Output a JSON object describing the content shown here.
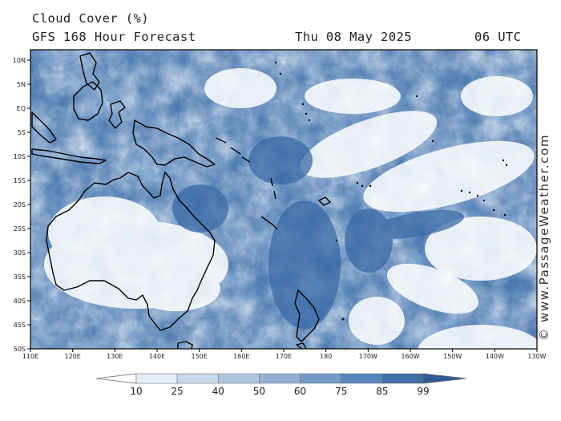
{
  "header": {
    "title": "Cloud Cover (%)",
    "subtitle": "GFS 168 Hour Forecast",
    "date": "Thu 08 May 2025",
    "time": "06 UTC"
  },
  "credit": "© www.PassageWeather.com",
  "map": {
    "lon_range": [
      110,
      230
    ],
    "lat_range": [
      10,
      -50
    ],
    "lat_labels": [
      "10N",
      "5N",
      "EQ",
      "5S",
      "10S",
      "15S",
      "20S",
      "25S",
      "30S",
      "35S",
      "40S",
      "45S",
      "50S"
    ],
    "lon_labels": [
      "110E",
      "120E",
      "130E",
      "140E",
      "150E",
      "160E",
      "170E",
      "180",
      "170W",
      "160W",
      "150W",
      "140W",
      "130W"
    ]
  },
  "colorbar": {
    "labels": [
      "10",
      "25",
      "40",
      "50",
      "60",
      "75",
      "85",
      "99"
    ],
    "colors": [
      "#f8fbfd",
      "#e4ecf5",
      "#c9d9ec",
      "#aec5e0",
      "#93b1d4",
      "#7399c6",
      "#5585bb",
      "#3f6ea8",
      "#2e5a96"
    ]
  },
  "colors": {
    "sea_cloud": "#3a6aa6",
    "clear": "#ffffff",
    "coast": "#000000"
  }
}
